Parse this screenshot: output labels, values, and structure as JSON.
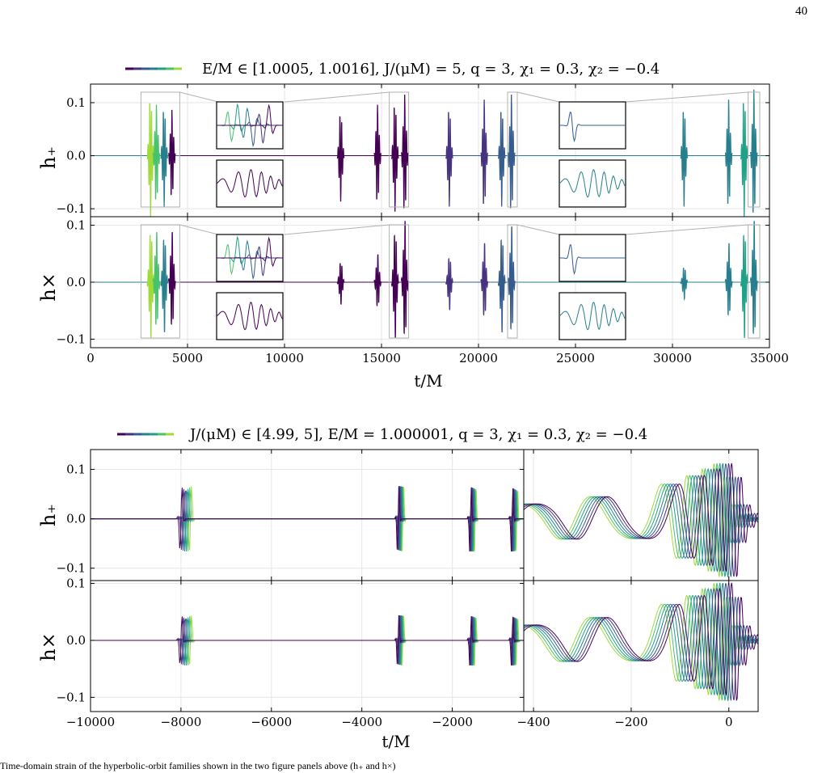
{
  "page": {
    "number": "40",
    "caption": "Time-domain strain of the hyperbolic-orbit families shown in the two figure panels above (h₊ and h×)"
  },
  "figure_top": {
    "legend": "E/M ∈ [1.0005, 1.0016],  J/(μM) = 5,  q = 3,  χ₁ = 0.3,  χ₂ = −0.4",
    "xlabel": "t/M",
    "ylabel_top": "h₊",
    "ylabel_bottom": "h×"
  },
  "figure_bottom": {
    "legend": "J/(μM) ∈ [4.99, 5],  E/M = 1.000001,  q = 3,  χ₁ = 0.3,  χ₂ = −0.4",
    "xlabel": "t/M",
    "ylabel_top": "h₊",
    "ylabel_bottom": "h×"
  },
  "colors": {
    "viridis": [
      "#440154",
      "#46327e",
      "#365c8d",
      "#277f8e",
      "#1fa187",
      "#4ac16d",
      "#a0da39"
    ],
    "grid": "#e6e6e6",
    "inset_box": "#b0b0b0"
  },
  "chart_data": [
    {
      "type": "line",
      "panel": "top-figure h+ (upper)",
      "xlabel": "",
      "ylabel": "h₊",
      "xlim": [
        0,
        35000
      ],
      "ylim": [
        -0.115,
        0.135
      ],
      "xticks": [
        0,
        5000,
        10000,
        15000,
        20000,
        25000,
        30000,
        35000
      ],
      "yticks": [
        -0.1,
        0.0,
        0.1
      ],
      "ytick_labels": [
        "−0.1",
        "0.0",
        "0.1"
      ],
      "grid": true,
      "legend_position": "top-center",
      "series_note": "7 waveforms, E/M from 1.0005 to 1.0016, each with repeated bursts",
      "bursts": [
        {
          "t": 3100,
          "amp": 0.12,
          "color": 6
        },
        {
          "t": 3400,
          "amp": 0.1,
          "color": 5
        },
        {
          "t": 3800,
          "amp": 0.1,
          "color": 3
        },
        {
          "t": 4200,
          "amp": 0.09,
          "color": 0
        },
        {
          "t": 12900,
          "amp": 0.09,
          "color": 0
        },
        {
          "t": 14800,
          "amp": 0.1,
          "color": 0
        },
        {
          "t": 15700,
          "amp": 0.11,
          "color": 0
        },
        {
          "t": 16200,
          "amp": 0.12,
          "color": 0
        },
        {
          "t": 18500,
          "amp": 0.1,
          "color": 1
        },
        {
          "t": 20300,
          "amp": 0.11,
          "color": 1
        },
        {
          "t": 21200,
          "amp": 0.1,
          "color": 2
        },
        {
          "t": 21700,
          "amp": 0.12,
          "color": 2
        },
        {
          "t": 30600,
          "amp": 0.1,
          "color": 3
        },
        {
          "t": 32900,
          "amp": 0.11,
          "color": 3
        },
        {
          "t": 33700,
          "amp": 0.12,
          "color": 4
        },
        {
          "t": 34200,
          "amp": 0.13,
          "color": 3
        }
      ]
    },
    {
      "type": "line",
      "panel": "top-figure h× (lower)",
      "xlabel": "t/M",
      "ylabel": "h×",
      "xlim": [
        0,
        35000
      ],
      "ylim": [
        -0.115,
        0.115
      ],
      "xticks": [
        0,
        5000,
        10000,
        15000,
        20000,
        25000,
        30000,
        35000
      ],
      "xtick_labels": [
        "0",
        "5000",
        "10000",
        "15000",
        "20000",
        "25000",
        "30000",
        "35000"
      ],
      "yticks": [
        -0.1,
        0.0,
        0.1
      ],
      "ytick_labels": [
        "−0.1",
        "0.0",
        "0.1"
      ],
      "grid": true,
      "bursts": [
        {
          "t": 3100,
          "amp": 0.1,
          "color": 6
        },
        {
          "t": 3400,
          "amp": 0.09,
          "color": 5
        },
        {
          "t": 3800,
          "amp": 0.09,
          "color": 3
        },
        {
          "t": 4200,
          "amp": 0.09,
          "color": 0
        },
        {
          "t": 12900,
          "amp": 0.04,
          "color": 0
        },
        {
          "t": 14800,
          "amp": 0.05,
          "color": 0
        },
        {
          "t": 15700,
          "amp": 0.1,
          "color": 0
        },
        {
          "t": 16200,
          "amp": 0.11,
          "color": 0
        },
        {
          "t": 18500,
          "amp": 0.05,
          "color": 1
        },
        {
          "t": 20300,
          "amp": 0.07,
          "color": 1
        },
        {
          "t": 21200,
          "amp": 0.09,
          "color": 2
        },
        {
          "t": 21700,
          "amp": 0.1,
          "color": 2
        },
        {
          "t": 30600,
          "amp": 0.03,
          "color": 3
        },
        {
          "t": 32900,
          "amp": 0.07,
          "color": 3
        },
        {
          "t": 33700,
          "amp": 0.1,
          "color": 4
        },
        {
          "t": 34200,
          "amp": 0.11,
          "color": 3
        }
      ]
    },
    {
      "type": "line",
      "panel": "bottom-figure h+ (left, wide)",
      "xlabel": "",
      "ylabel": "h₊",
      "xlim": [
        -10000,
        -420
      ],
      "ylim": [
        -0.125,
        0.14
      ],
      "yticks": [
        -0.1,
        0.0,
        0.1
      ],
      "ytick_labels": [
        "−0.1",
        "0.0",
        "0.1"
      ],
      "grid": true,
      "series_note": "7 waveforms, J/(μM) from 4.99 to 5",
      "burst_groups": [
        -8000,
        -3200,
        -1600,
        -680
      ]
    },
    {
      "type": "line",
      "panel": "bottom-figure h+ (right, merger zoom)",
      "xlim": [
        -420,
        60
      ],
      "ylim": [
        -0.125,
        0.14
      ],
      "grid": true
    },
    {
      "type": "line",
      "panel": "bottom-figure h× (left, wide)",
      "xlabel": "t/M",
      "ylabel": "h×",
      "xlim": [
        -10000,
        -420
      ],
      "ylim": [
        -0.125,
        0.105
      ],
      "xticks": [
        -10000,
        -8000,
        -6000,
        -4000,
        -2000
      ],
      "xtick_labels": [
        "−10000",
        "−8000",
        "−6000",
        "−4000",
        "−2000"
      ],
      "yticks": [
        -0.1,
        0.0,
        0.1
      ],
      "ytick_labels": [
        "−0.1",
        "0.0",
        "0.1"
      ],
      "grid": true
    },
    {
      "type": "line",
      "panel": "bottom-figure h× (right, merger zoom)",
      "xlim": [
        -420,
        60
      ],
      "ylim": [
        -0.125,
        0.105
      ],
      "xticks": [
        -400,
        -200,
        0
      ],
      "xtick_labels": [
        "−400",
        "−200",
        "0"
      ],
      "grid": true
    }
  ]
}
